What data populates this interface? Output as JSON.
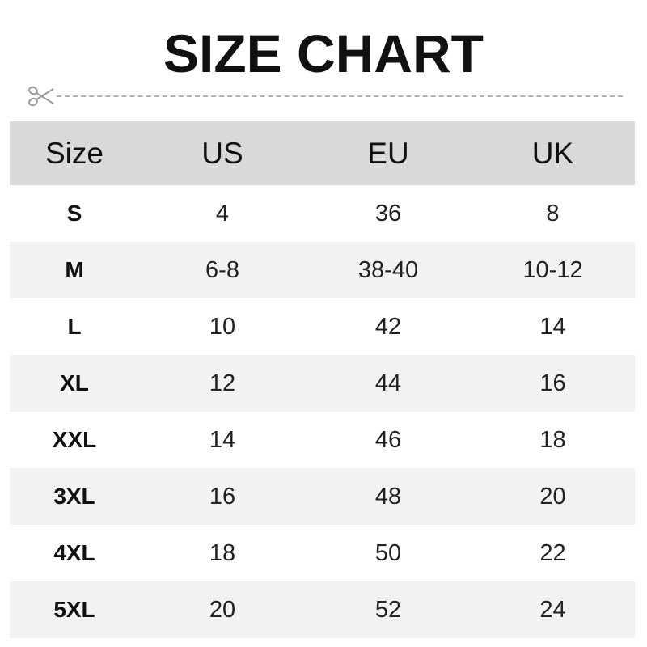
{
  "title": "SIZE CHART",
  "icons": {
    "cut_line": "scissors-icon"
  },
  "colors": {
    "header_bg": "#d9d9d9",
    "alt_row_bg": "#f2f2f2"
  },
  "table": {
    "headers": [
      "Size",
      "US",
      "EU",
      "UK"
    ],
    "rows": [
      [
        "S",
        "4",
        "36",
        "8"
      ],
      [
        "M",
        "6-8",
        "38-40",
        "10-12"
      ],
      [
        "L",
        "10",
        "42",
        "14"
      ],
      [
        "XL",
        "12",
        "44",
        "16"
      ],
      [
        "XXL",
        "14",
        "46",
        "18"
      ],
      [
        "3XL",
        "16",
        "48",
        "20"
      ],
      [
        "4XL",
        "18",
        "50",
        "22"
      ],
      [
        "5XL",
        "20",
        "52",
        "24"
      ]
    ]
  }
}
